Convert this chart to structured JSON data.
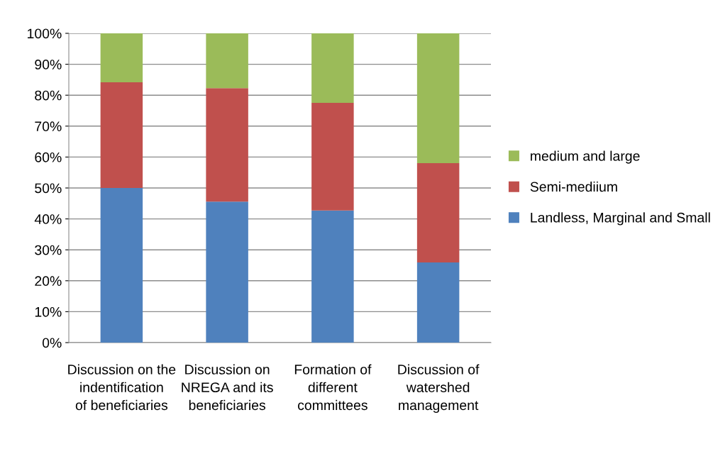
{
  "chart_data": {
    "type": "bar",
    "stacked": true,
    "categories": [
      "Discussion on the indentification of beneficiaries",
      "Discussion on NREGA and its beneficiaries",
      "Formation of different committees",
      "Discussion of watershed management"
    ],
    "series": [
      {
        "name": "Landless, Marginal and Small",
        "color": "#4f81bd",
        "values": [
          50.0,
          45.6,
          42.7,
          25.9
        ]
      },
      {
        "name": "Semi-mediium",
        "color": "#c0504d",
        "values": [
          34.2,
          36.7,
          34.8,
          32.1
        ]
      },
      {
        "name": "medium and large",
        "color": "#9bbb59",
        "values": [
          15.8,
          17.7,
          22.5,
          42.0
        ]
      }
    ],
    "ylim": [
      0,
      100
    ],
    "yticks": [
      {
        "value": 0,
        "label": "0%"
      },
      {
        "value": 10,
        "label": "10%"
      },
      {
        "value": 20,
        "label": "20%"
      },
      {
        "value": 30,
        "label": "30%"
      },
      {
        "value": 40,
        "label": "40%"
      },
      {
        "value": 50,
        "label": "50%"
      },
      {
        "value": 60,
        "label": "60%"
      },
      {
        "value": 70,
        "label": "70%"
      },
      {
        "value": 80,
        "label": "80%"
      },
      {
        "value": 90,
        "label": "90%"
      },
      {
        "value": 100,
        "label": "100%"
      }
    ],
    "grid": "y",
    "legend": "right"
  }
}
